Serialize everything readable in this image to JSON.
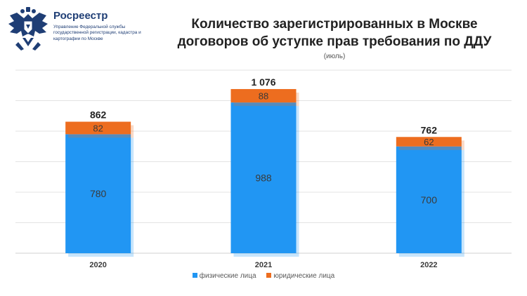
{
  "header": {
    "org_name": "Росреестр",
    "org_description": "Управление Федеральной службы государственной регистрации, кадастра и картографии по Москве",
    "logo_icon": "double-headed-eagle-emblem-icon"
  },
  "colors": {
    "individuals": "#2196f3",
    "legal_entities": "#ed6d1f",
    "brand": "#1f3e75"
  },
  "chart_data": {
    "type": "bar",
    "stacked": true,
    "title": "Количество зарегистрированных в Москве договоров об уступке прав требования по ДДУ",
    "subtitle": "(июль)",
    "categories": [
      "2020",
      "2021",
      "2022"
    ],
    "series": [
      {
        "name": "физические лица",
        "values": [
          780,
          988,
          700
        ]
      },
      {
        "name": "юридические лица",
        "values": [
          82,
          88,
          62
        ]
      }
    ],
    "totals": [
      "862",
      "1 076",
      "762"
    ],
    "ylim": [
      0,
      1200
    ],
    "grid": true,
    "legend_position": "bottom"
  }
}
